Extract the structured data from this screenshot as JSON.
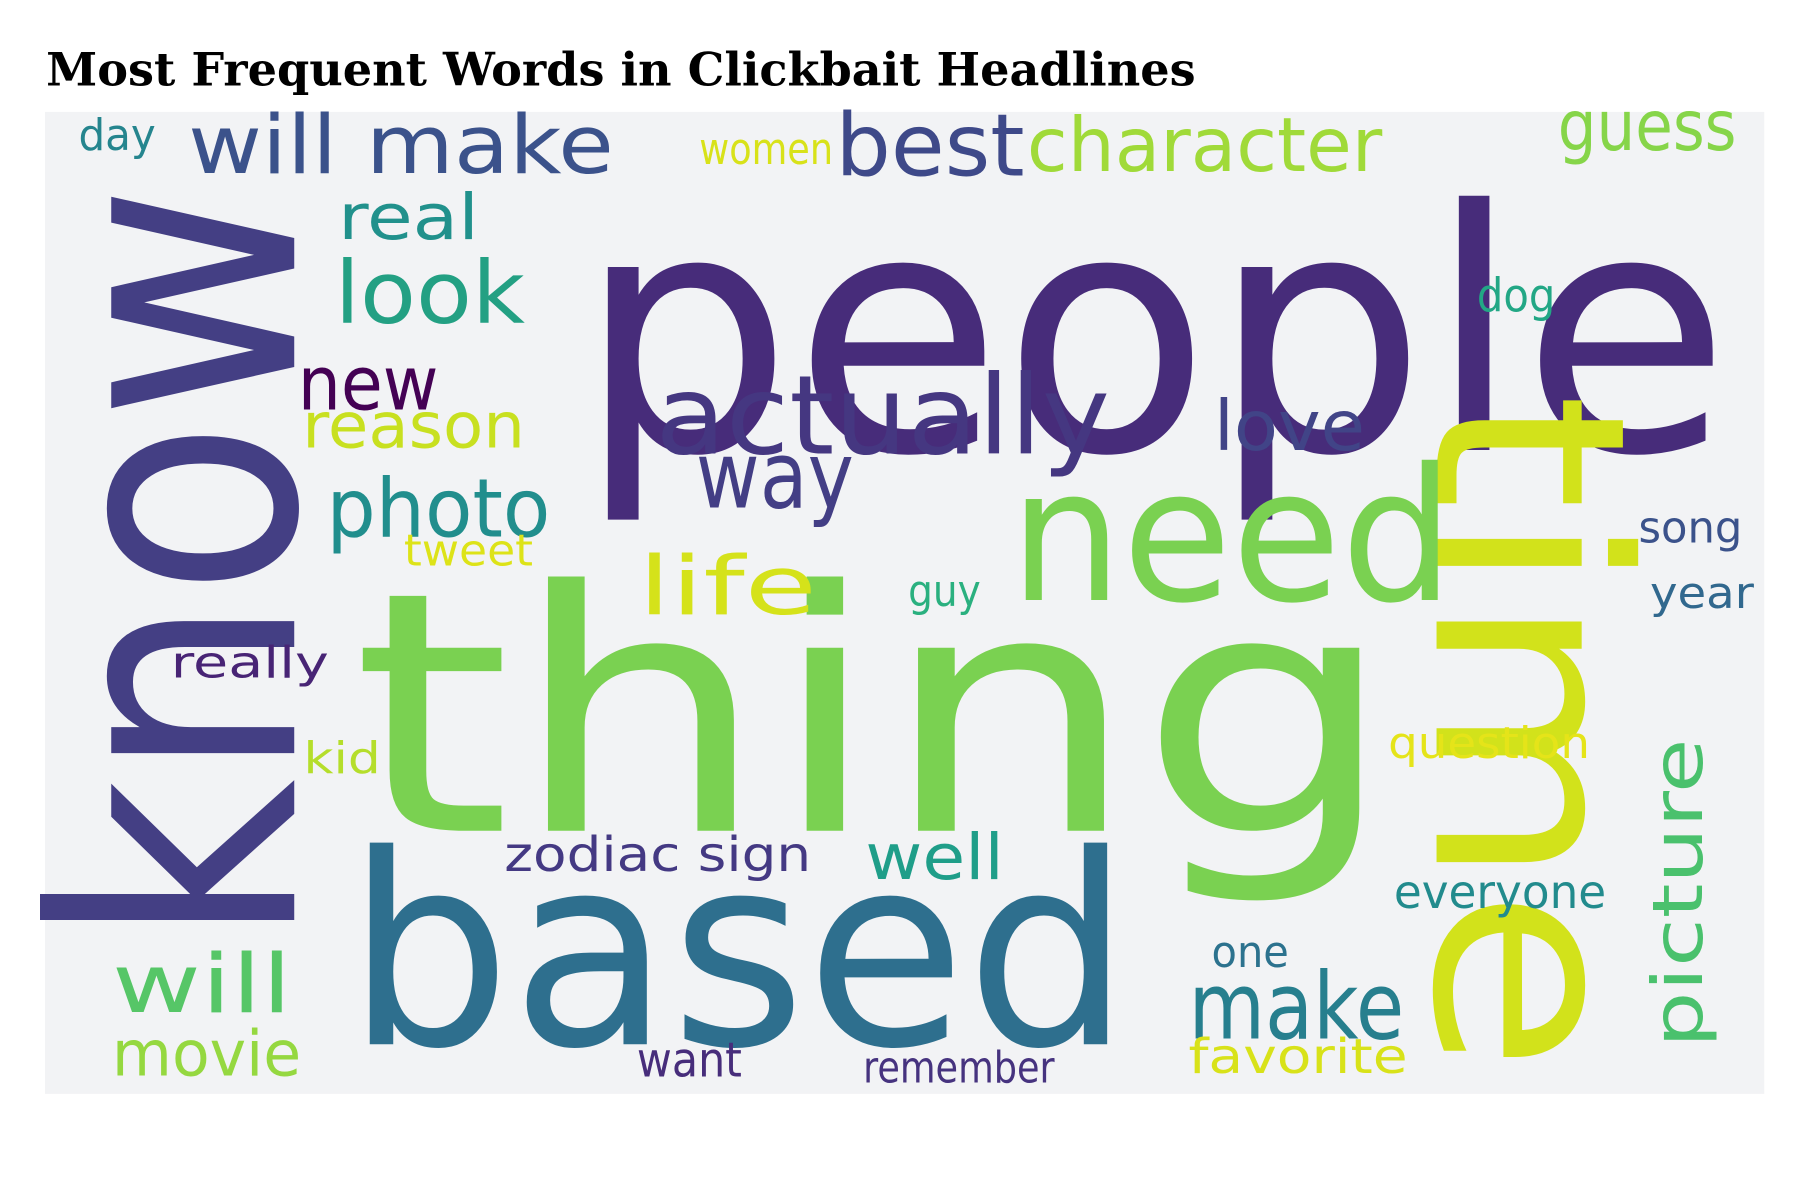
{
  "chart_data": {
    "type": "wordcloud",
    "title": "Most Frequent Words in Clickbait Headlines",
    "background": "#f2f3f5",
    "words": [
      {
        "text": "people",
        "color": "#472c7a"
      },
      {
        "text": "know",
        "color": "#443f84"
      },
      {
        "text": "thing",
        "color": "#7ad151"
      },
      {
        "text": "time",
        "color": "#d2e21b"
      },
      {
        "text": "based",
        "color": "#2e6f8e"
      },
      {
        "text": "need",
        "color": "#7ad151"
      },
      {
        "text": "actually",
        "color": "#453781"
      },
      {
        "text": "way",
        "color": "#433e85"
      },
      {
        "text": "will make",
        "color": "#3b528b"
      },
      {
        "text": "best",
        "color": "#3e4989"
      },
      {
        "text": "character",
        "color": "#a0da39"
      },
      {
        "text": "guess",
        "color": "#86d549"
      },
      {
        "text": "day",
        "color": "#25858e"
      },
      {
        "text": "women",
        "color": "#d8e219"
      },
      {
        "text": "real",
        "color": "#21918c"
      },
      {
        "text": "look",
        "color": "#23a083"
      },
      {
        "text": "dog",
        "color": "#22a785"
      },
      {
        "text": "new",
        "color": "#440154"
      },
      {
        "text": "reason",
        "color": "#c8e020"
      },
      {
        "text": "love",
        "color": "#414487"
      },
      {
        "text": "photo",
        "color": "#218e8d"
      },
      {
        "text": "tweet",
        "color": "#dde318"
      },
      {
        "text": "song",
        "color": "#3b528b"
      },
      {
        "text": "life",
        "color": "#d5e21a"
      },
      {
        "text": "guy",
        "color": "#2ab07f"
      },
      {
        "text": "year",
        "color": "#31688e"
      },
      {
        "text": "really",
        "color": "#482475"
      },
      {
        "text": "question",
        "color": "#e5e419"
      },
      {
        "text": "kid",
        "color": "#b5de2b"
      },
      {
        "text": "picture",
        "color": "#4ac16d"
      },
      {
        "text": "zodiac sign",
        "color": "#443983"
      },
      {
        "text": "well",
        "color": "#1f9e89"
      },
      {
        "text": "everyone",
        "color": "#228b8d"
      },
      {
        "text": "will",
        "color": "#56c667"
      },
      {
        "text": "one",
        "color": "#2c728e"
      },
      {
        "text": "make",
        "color": "#277f8e"
      },
      {
        "text": "movie",
        "color": "#95d840"
      },
      {
        "text": "want",
        "color": "#472d7b"
      },
      {
        "text": "remember",
        "color": "#46337f"
      },
      {
        "text": "favorite",
        "color": "#d8e219"
      }
    ]
  }
}
